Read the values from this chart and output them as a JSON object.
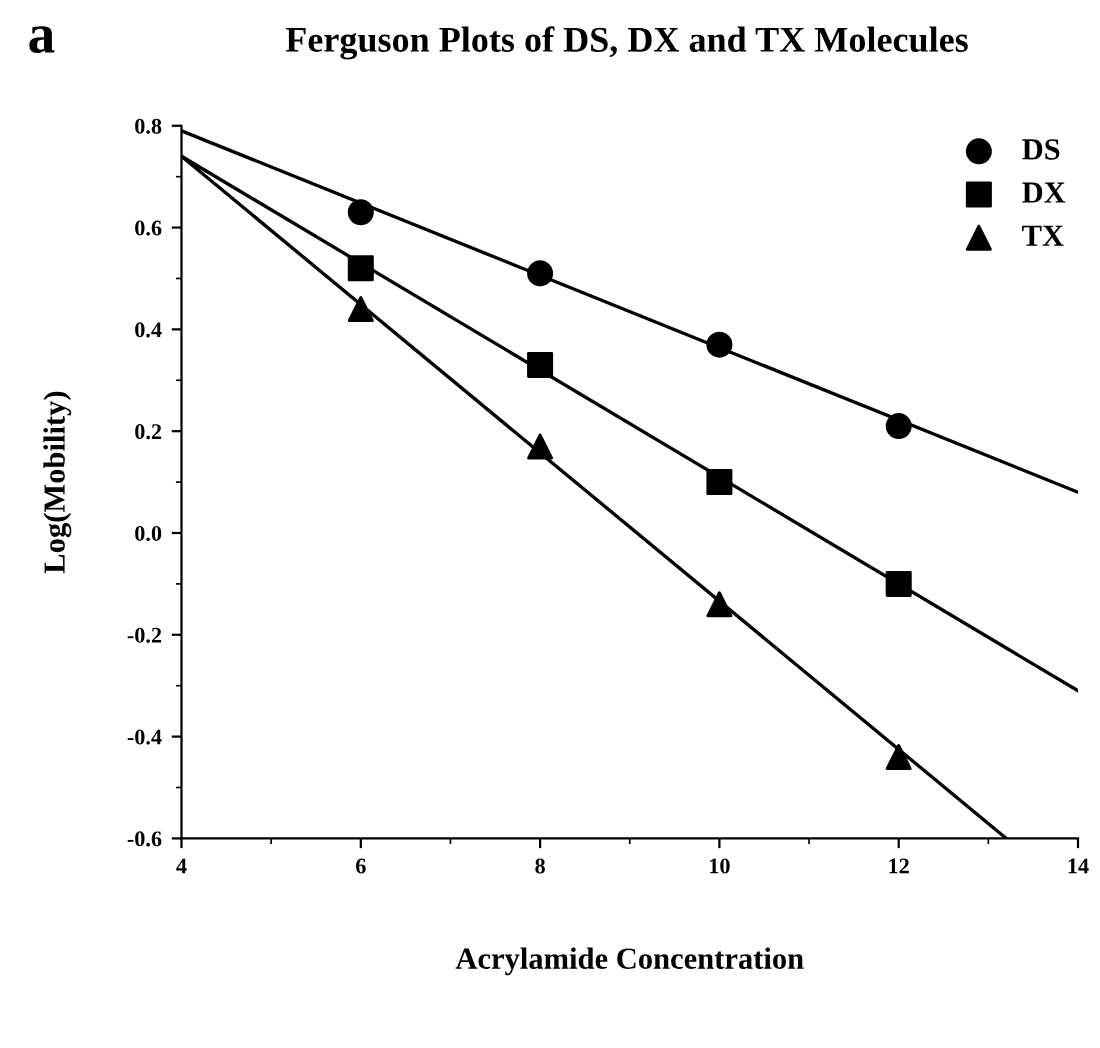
{
  "chart_data": {
    "type": "scatter",
    "title": "Ferguson Plots of DS, DX and TX Molecules",
    "xlabel": "Acrylamide Concentration",
    "ylabel": "Log(Mobility)",
    "annotations": [
      "a"
    ],
    "x": [
      6,
      8,
      10,
      12
    ],
    "series": [
      {
        "name": "DS",
        "color": "#000000",
        "marker": "circle",
        "values": [
          0.63,
          0.51,
          0.37,
          0.21
        ]
      },
      {
        "name": "DX",
        "color": "#000000",
        "marker": "square",
        "values": [
          0.52,
          0.33,
          0.1,
          -0.1
        ]
      },
      {
        "name": "TX",
        "color": "#000000",
        "marker": "triangle",
        "values": [
          0.44,
          0.17,
          -0.14,
          -0.44
        ]
      },
      {
        "type": "line",
        "color": "#000000",
        "x": [
          4,
          14
        ],
        "values": [
          0.79,
          0.08
        ]
      },
      {
        "type": "line",
        "color": "#000000",
        "x": [
          4,
          14
        ],
        "values": [
          0.74,
          -0.31
        ]
      },
      {
        "type": "line",
        "color": "#000000",
        "x": [
          4,
          13.2
        ],
        "values": [
          0.74,
          -0.6
        ]
      }
    ],
    "xlim": [
      4,
      14
    ],
    "xticks": [
      4,
      6,
      8,
      10,
      12,
      14
    ],
    "ylim": [
      -0.6,
      0.8
    ],
    "yticks": [
      -0.6,
      -0.4,
      -0.2,
      {
        "value": 0,
        "label": "0.0"
      },
      0.2,
      0.4,
      0.6,
      0.8
    ],
    "legend": "top right",
    "grid": false
  }
}
